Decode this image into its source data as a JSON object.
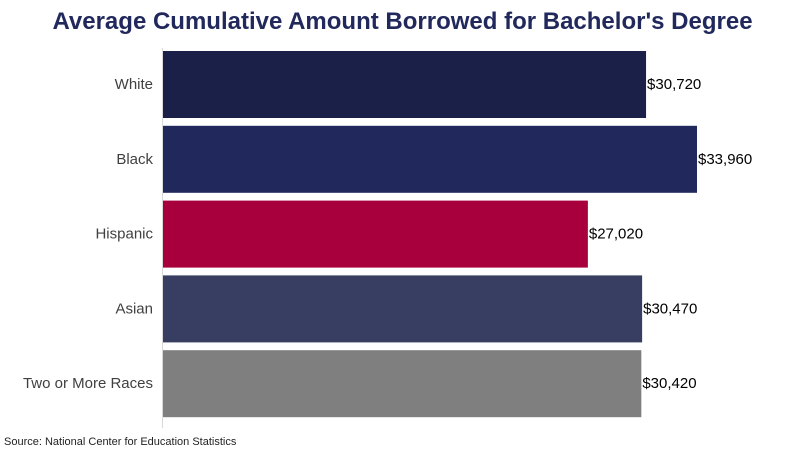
{
  "chart_data": {
    "type": "bar",
    "orientation": "horizontal",
    "title": "Average Cumulative Amount Borrowed for Bachelor's Degree",
    "categories": [
      "White",
      "Black",
      "Hispanic",
      "Asian",
      "Two or More Races"
    ],
    "values": [
      30720,
      33960,
      27020,
      30470,
      30420
    ],
    "value_labels": [
      "$30,720",
      "$33,960",
      "$27,020",
      "$30,470",
      "$30,420"
    ],
    "colors": [
      "#1a2048",
      "#21295c",
      "#a8003c",
      "#373e62",
      "#7f7f7f"
    ],
    "xlabel": "",
    "ylabel": "",
    "xlim": [
      0,
      35000
    ],
    "grid": false,
    "legend": "none"
  },
  "source": "Source: National Center for Education Statistics"
}
